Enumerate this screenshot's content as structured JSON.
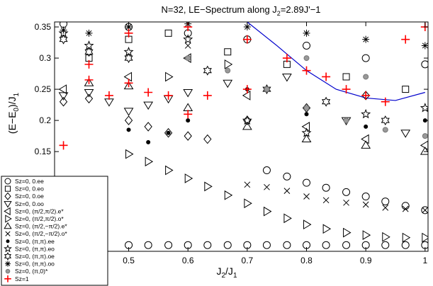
{
  "chart_data": {
    "type": "scatter",
    "title": {
      "main": "N=32, LE−Spectrum along J",
      "sub": "2",
      "rest": "=2.89J'−1"
    },
    "x_label": {
      "main": "J",
      "sub": "2",
      "mid": "/J",
      "sub2": "1"
    },
    "y_label": {
      "main": "(E−E",
      "sub": "0",
      "mid": ")/J",
      "sub2": "1"
    },
    "xlim": [
      0.375,
      1.005
    ],
    "ylim": [
      -0.01,
      0.358
    ],
    "xticks": [
      0.5,
      0.6,
      0.7,
      0.8,
      0.9,
      1
    ],
    "yticks": [
      0.15,
      0.2,
      0.25,
      0.3,
      0.35
    ],
    "legend": "bottom-left",
    "series": [
      {
        "name": "Sz=0, 0.ee",
        "marker": "circle",
        "color": "#000000",
        "x": [
          0.5,
          0.533,
          0.567,
          0.6,
          0.633,
          0.667,
          0.7,
          0.733,
          0.767,
          0.8,
          0.833,
          0.867,
          0.9,
          0.933,
          0.967,
          1.0,
          0.39,
          0.733,
          0.767,
          0.8,
          0.833,
          0.867,
          0.9,
          0.933,
          0.967,
          1.0,
          0.5,
          0.6,
          0.7,
          0.8,
          0.9,
          1.0
        ],
        "y": [
          0,
          0,
          0,
          0,
          0,
          0,
          0,
          0,
          0,
          0,
          0,
          0,
          0,
          0,
          0,
          0,
          0.355,
          0.12,
          0.11,
          0.1,
          0.092,
          0.085,
          0.078,
          0.07,
          0.063,
          0.056,
          0.35,
          0.34,
          0.33,
          0.32,
          0.3,
          0.29
        ]
      },
      {
        "name": "Sz=0, 0.eo",
        "marker": "square",
        "color": "#000000",
        "x": [
          0.433,
          0.5,
          0.567,
          0.667,
          0.767,
          0.867,
          0.967
        ],
        "y": [
          0.3,
          0.33,
          0.34,
          0.31,
          0.29,
          0.27,
          0.25
        ]
      },
      {
        "name": "Sz=0, 0.oe",
        "marker": "diamond",
        "color": "#000000",
        "x": [
          0.39,
          0.433,
          0.5,
          0.533,
          0.567,
          0.6,
          0.633,
          0.7,
          0.8,
          0.9
        ],
        "y": [
          0.23,
          0.235,
          0.2,
          0.19,
          0.18,
          0.175,
          0.17,
          0.2,
          0.22,
          0.24
        ]
      },
      {
        "name": "Sz=0, 0.oo",
        "marker": "tri-down",
        "color": "#000000",
        "x": [
          0.39,
          0.433,
          0.467,
          0.5,
          0.533,
          0.567,
          0.6,
          0.667,
          0.767,
          0.867,
          0.967
        ],
        "y": [
          0.24,
          0.245,
          0.23,
          0.215,
          0.225,
          0.235,
          0.245,
          0.26,
          0.27,
          0.2,
          0.18
        ]
      },
      {
        "name": "Sz=0, (π/2,π/2).e*",
        "marker": "tri-left",
        "color": "#000000",
        "x": [
          0.39,
          0.5,
          0.6,
          0.7,
          0.8,
          0.9,
          1.0
        ],
        "y": [
          0.25,
          0.27,
          0.3,
          0.24,
          0.19,
          0.17,
          0.16
        ]
      },
      {
        "name": "Sz=0, (π/2,π/2).o*",
        "marker": "tri-right",
        "color": "#000000",
        "x": [
          0.5,
          0.533,
          0.567,
          0.6,
          0.633,
          0.667,
          0.7,
          0.733,
          0.767,
          0.8,
          0.833,
          0.867,
          0.9,
          0.933,
          0.967,
          1.0,
          0.567,
          0.667
        ],
        "y": [
          0.146,
          0.134,
          0.12,
          0.107,
          0.094,
          0.08,
          0.067,
          0.054,
          0.043,
          0.033,
          0.026,
          0.02,
          0.016,
          0.013,
          0.012,
          0.012,
          0.27,
          0.29
        ]
      },
      {
        "name": "Sz=0, (π/2,−π/2).e*",
        "marker": "tri-up",
        "color": "#000000",
        "x": [
          0.433,
          0.5,
          0.6,
          0.7,
          0.8,
          0.9,
          1.0
        ],
        "y": [
          0.26,
          0.255,
          0.22,
          0.19,
          0.17,
          0.16,
          0.15
        ]
      },
      {
        "name": "Sz=0, (π/2,−π/2).o*",
        "marker": "x",
        "color": "#000000",
        "x": [
          0.7,
          0.733,
          0.767,
          0.8,
          0.833,
          0.867,
          0.9,
          0.933,
          0.967,
          1.0,
          0.5,
          0.6
        ],
        "y": [
          0.097,
          0.093,
          0.087,
          0.078,
          0.072,
          0.068,
          0.065,
          0.06,
          0.058,
          0.056,
          0.35,
          0.32
        ]
      },
      {
        "name": "Sz=0, (π,π).ee",
        "marker": "dot",
        "color": "#000000",
        "x": [
          0.5,
          0.533,
          0.567,
          0.6,
          0.7,
          0.8,
          0.9,
          1.0
        ],
        "y": [
          0.185,
          0.165,
          0.18,
          0.2,
          0.25,
          0.21,
          0.19,
          0.2
        ]
      },
      {
        "name": "Sz=0, (π,π).eo",
        "marker": "star",
        "color": "#000000",
        "x": [
          0.39,
          0.433,
          0.5,
          0.6,
          0.7,
          0.8,
          0.9,
          1.0
        ],
        "y": [
          0.34,
          0.32,
          0.31,
          0.33,
          0.2,
          0.18,
          0.21,
          0.22
        ]
      },
      {
        "name": "Sz=0, (π,π).oe",
        "marker": "hexagram",
        "color": "#000000",
        "x": [
          0.39,
          0.433,
          0.5,
          0.633,
          0.733,
          0.833,
          0.933
        ],
        "y": [
          0.33,
          0.31,
          0.3,
          0.28,
          0.25,
          0.23,
          0.2
        ]
      },
      {
        "name": "Sz=0, (π,π).oo",
        "marker": "asterisk",
        "color": "#000000",
        "x": [
          0.39,
          0.433,
          0.5,
          0.6,
          0.7,
          0.8,
          0.9,
          1.0
        ],
        "y": [
          0.345,
          0.34,
          0.35,
          0.355,
          0.35,
          0.34,
          0.33,
          0.32
        ]
      },
      {
        "name": "Sz=0, (π,0)*",
        "marker": "filled-circle",
        "color": "#999999",
        "x": [
          0.6,
          0.667,
          0.733,
          0.8,
          0.867,
          0.933,
          1.0,
          0.8,
          0.9
        ],
        "y": [
          0.3,
          0.28,
          0.25,
          0.22,
          0.2,
          0.185,
          0.175,
          0.3,
          0.27
        ]
      },
      {
        "name": "Sz=1",
        "marker": "plus",
        "color": "#ff0000",
        "x": [
          0.39,
          0.433,
          0.433,
          0.467,
          0.5,
          0.533,
          0.567,
          0.6,
          0.633,
          0.7,
          0.767,
          0.8,
          0.833,
          0.867,
          0.9,
          0.933,
          0.967,
          1.0,
          0.5,
          0.6,
          0.7
        ],
        "y": [
          0.16,
          0.265,
          0.29,
          0.24,
          0.26,
          0.245,
          0.24,
          0.21,
          0.24,
          0.25,
          0.3,
          0.28,
          0.27,
          0.25,
          0.24,
          0.23,
          0.33,
          0.35,
          0.34,
          0.35,
          0.33
        ]
      }
    ],
    "curve": {
      "color": "#0000cc",
      "x": [
        0.7,
        0.75,
        0.8,
        0.85,
        0.9,
        0.95,
        1.0
      ],
      "y": [
        0.358,
        0.32,
        0.28,
        0.25,
        0.236,
        0.232,
        0.245
      ]
    }
  }
}
